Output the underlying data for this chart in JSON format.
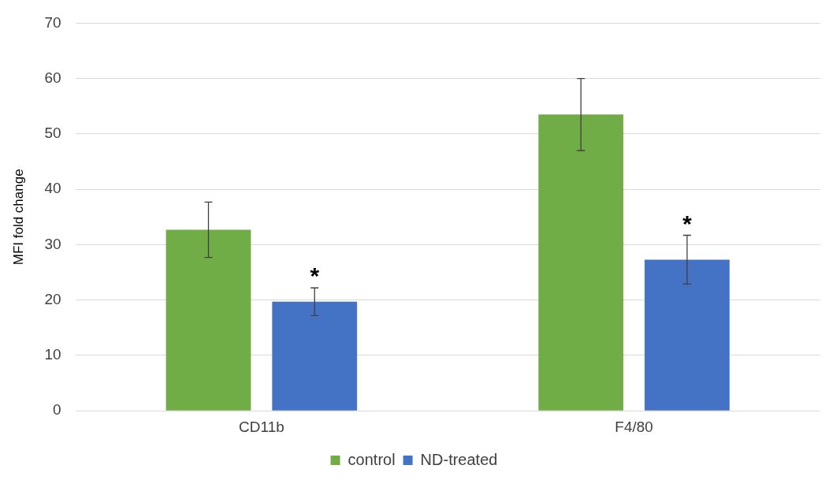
{
  "chart_data": {
    "type": "bar",
    "ylabel": "MFI fold change",
    "categories": [
      "CD11b",
      "F4/80"
    ],
    "series": [
      {
        "name": "control",
        "color": "#70ad47",
        "values": [
          32.7,
          53.5
        ],
        "errors": [
          5,
          6.5
        ]
      },
      {
        "name": "ND-treated",
        "color": "#4472c4",
        "values": [
          19.7,
          27.3
        ],
        "errors": [
          2.5,
          4.4
        ]
      }
    ],
    "ylim": [
      0,
      70
    ],
    "yticks": [
      0,
      10,
      20,
      30,
      40,
      50,
      60,
      70
    ],
    "grid": "y",
    "legend": "bottom",
    "annotations": [
      "*",
      "*"
    ]
  }
}
